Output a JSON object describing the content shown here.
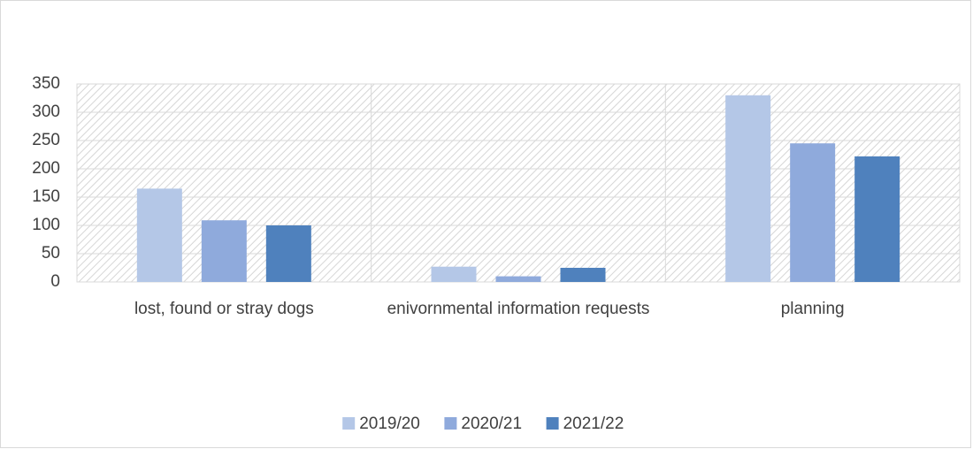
{
  "chart_data": {
    "type": "bar",
    "categories": [
      "lost, found or stray dogs",
      "enivornmental information requests",
      "planning"
    ],
    "series": [
      {
        "name": "2019/20",
        "color": "#b4c7e7",
        "values": [
          165,
          27,
          330
        ]
      },
      {
        "name": "2020/21",
        "color": "#8faadc",
        "values": [
          109,
          10,
          245
        ]
      },
      {
        "name": "2021/22",
        "color": "#4f81bd",
        "values": [
          100,
          25,
          222
        ]
      }
    ],
    "ylim": [
      0,
      350
    ],
    "yticks": [
      0,
      50,
      100,
      150,
      200,
      250,
      300,
      350
    ],
    "grid": true,
    "legend": "bottom"
  }
}
